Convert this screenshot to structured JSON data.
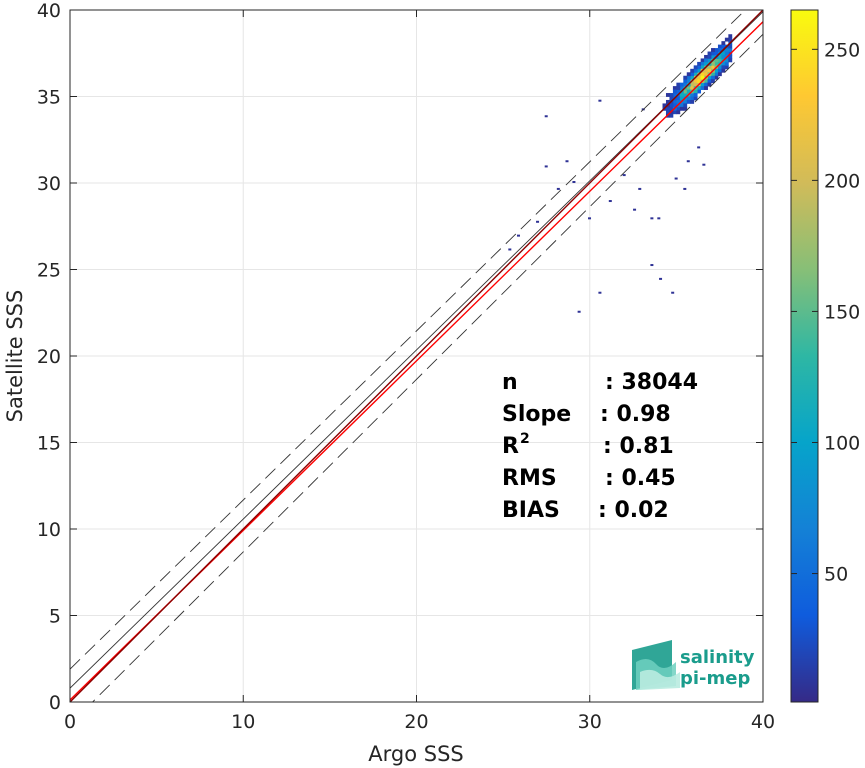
{
  "chart_data": {
    "type": "heatmap",
    "title": "",
    "xlabel": "Argo SSS",
    "ylabel": "Satellite SSS",
    "xlim": [
      0,
      40
    ],
    "ylim": [
      0,
      40
    ],
    "xticks": [
      0,
      10,
      20,
      30,
      40
    ],
    "yticks": [
      0,
      5,
      10,
      15,
      20,
      25,
      30,
      35,
      40
    ],
    "grid": true,
    "colorbar": {
      "min": 1,
      "max": 265,
      "ticks": [
        50,
        100,
        150,
        200,
        250
      ],
      "colormap": "parula",
      "colors": [
        "#352a87",
        "#0f5cdd",
        "#1481d6",
        "#06a4ca",
        "#2eb7a4",
        "#87bf77",
        "#d1bb59",
        "#fec832",
        "#f9fb0e"
      ]
    },
    "lines": [
      {
        "kind": "identity",
        "style": "solid",
        "color": "#8b0000",
        "x": [
          0,
          40
        ],
        "y": [
          0,
          40
        ]
      },
      {
        "kind": "regression",
        "style": "solid",
        "color": "#ff0000",
        "x": [
          0,
          40
        ],
        "y": [
          0.12,
          39.32
        ]
      },
      {
        "kind": "reference",
        "style": "solid",
        "color": "#333333",
        "x": [
          0,
          40
        ],
        "y": [
          0.8,
          39.9
        ]
      },
      {
        "kind": "reference-upper",
        "style": "dashed",
        "color": "#333333",
        "x": [
          0,
          40
        ],
        "y": [
          1.9,
          41.0
        ]
      },
      {
        "kind": "reference-lower",
        "style": "dashed",
        "color": "#333333",
        "x": [
          0,
          40
        ],
        "y": [
          -1.3,
          38.6
        ]
      }
    ],
    "density_core": {
      "x_range": [
        32,
        38
      ],
      "center": [
        36.5,
        36.2
      ],
      "peak_count": 265
    },
    "outliers": [
      {
        "x": 29.3,
        "y": 22.5
      },
      {
        "x": 30.5,
        "y": 23.6
      },
      {
        "x": 33.5,
        "y": 25.2
      },
      {
        "x": 34.0,
        "y": 24.4
      },
      {
        "x": 34.7,
        "y": 23.6
      },
      {
        "x": 27.4,
        "y": 30.9
      },
      {
        "x": 25.8,
        "y": 26.9
      },
      {
        "x": 25.3,
        "y": 26.1
      },
      {
        "x": 28.6,
        "y": 31.2
      },
      {
        "x": 26.9,
        "y": 27.7
      },
      {
        "x": 33.5,
        "y": 27.9
      },
      {
        "x": 33.9,
        "y": 27.9
      },
      {
        "x": 32.5,
        "y": 28.4
      },
      {
        "x": 29.9,
        "y": 27.9
      },
      {
        "x": 31.1,
        "y": 28.9
      },
      {
        "x": 27.4,
        "y": 33.8
      },
      {
        "x": 30.5,
        "y": 34.7
      },
      {
        "x": 33.0,
        "y": 34.2
      },
      {
        "x": 34.9,
        "y": 30.2
      },
      {
        "x": 35.6,
        "y": 31.2
      },
      {
        "x": 36.2,
        "y": 32.0
      },
      {
        "x": 36.5,
        "y": 31.0
      },
      {
        "x": 35.4,
        "y": 29.6
      },
      {
        "x": 31.9,
        "y": 30.4
      },
      {
        "x": 32.8,
        "y": 29.6
      },
      {
        "x": 28.1,
        "y": 29.6
      },
      {
        "x": 29.0,
        "y": 30.0
      }
    ],
    "stats": [
      {
        "label": "n",
        "sup": "",
        "value": ": 38044"
      },
      {
        "label": "Slope",
        "sup": "",
        "value": ": 0.98"
      },
      {
        "label": "R",
        "sup": "2",
        "value": ": 0.81"
      },
      {
        "label": "RMS",
        "sup": "",
        "value": ": 0.45"
      },
      {
        "label": "BIAS",
        "sup": "",
        "value": ": 0.02"
      }
    ]
  },
  "logo": {
    "line1": "salinity",
    "line2": "pi-mep",
    "color": "#1a9c8c"
  }
}
